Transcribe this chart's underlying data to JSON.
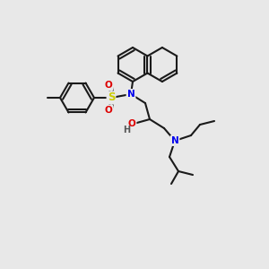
{
  "bg_color": "#e8e8e8",
  "bond_color": "#1a1a1a",
  "bond_lw": 1.5,
  "atom_colors": {
    "N": "#0000ee",
    "O": "#dd0000",
    "S": "#cccc00",
    "H": "#555555"
  },
  "font_size": 7.5,
  "title": ""
}
